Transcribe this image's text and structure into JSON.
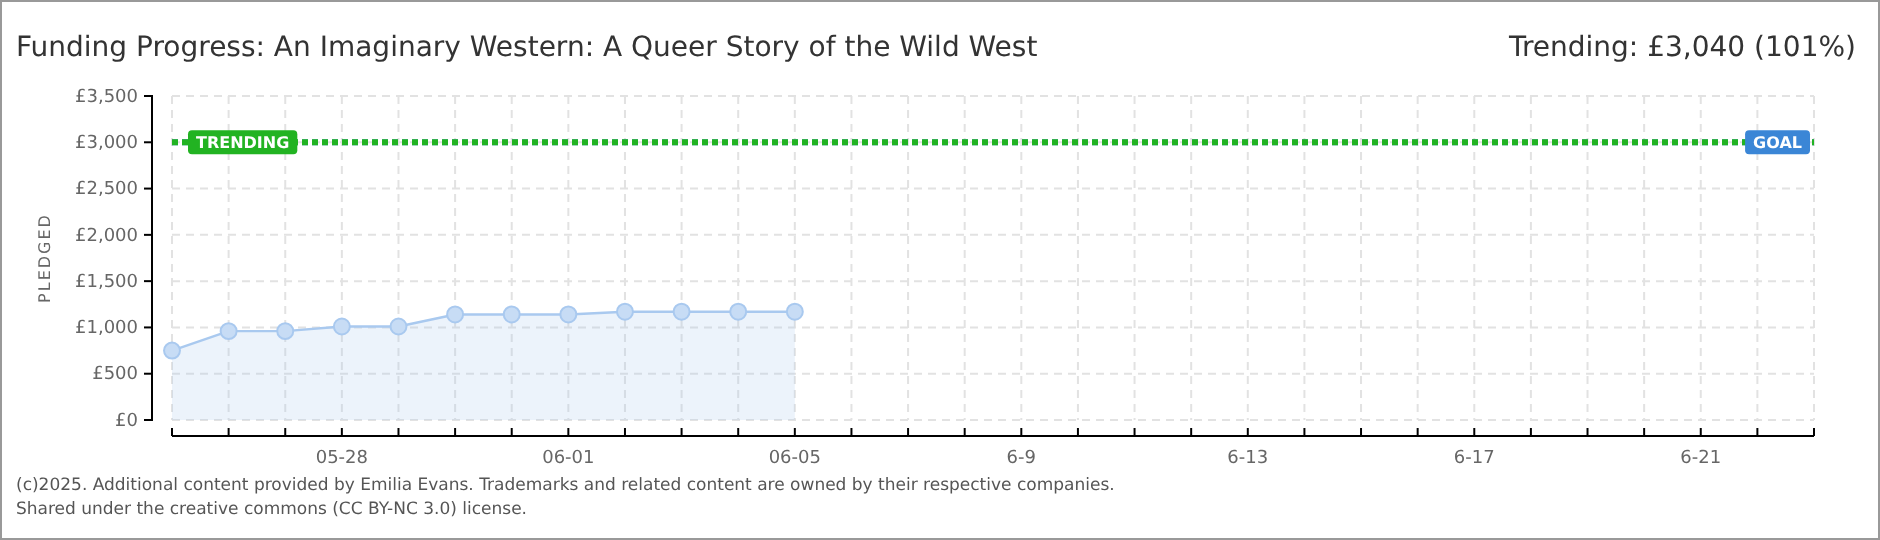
{
  "chart_data": {
    "type": "area",
    "title": "Funding Progress: An Imaginary Western: A Queer Story of the Wild West",
    "subtitle": "Trending: £3,040 (101%)",
    "ylabel": "PLEDGED",
    "x": [
      "--05-25",
      "--05-26",
      "--05-27",
      "--05-28",
      "--05-29",
      "--05-30",
      "--05-31",
      "--06-01",
      "--06-02",
      "--06-03",
      "--06-04",
      "--06-05"
    ],
    "series": [
      {
        "color": "#a9c9ef",
        "values": [
          750,
          960,
          960,
          1010,
          1010,
          1140,
          1140,
          1140,
          1170,
          1170,
          1170,
          1170
        ]
      }
    ],
    "marker": "circle",
    "xlim": [
      "--05-25",
      "--06-23"
    ],
    "xticks": [
      {
        "value": "--05-25",
        "label": null
      },
      {
        "value": "--05-26",
        "label": null
      },
      {
        "value": "--05-27",
        "label": null
      },
      {
        "value": "--05-28",
        "label": "05-28"
      },
      {
        "value": "--05-29",
        "label": null
      },
      {
        "value": "--05-30",
        "label": null
      },
      {
        "value": "--05-31",
        "label": null
      },
      {
        "value": "--06-01",
        "label": "06-01"
      },
      {
        "value": "--06-02",
        "label": null
      },
      {
        "value": "--06-03",
        "label": null
      },
      {
        "value": "--06-04",
        "label": null
      },
      {
        "value": "--06-05",
        "label": "06-05"
      },
      {
        "value": "--06-06",
        "label": null
      },
      {
        "value": "--06-07",
        "label": null
      },
      {
        "value": "--06-08",
        "label": null
      },
      {
        "value": "--06-09",
        "label": "6-9"
      },
      {
        "value": "--06-10",
        "label": null
      },
      {
        "value": "--06-11",
        "label": null
      },
      {
        "value": "--06-12",
        "label": null
      },
      {
        "value": "--06-13",
        "label": "6-13"
      },
      {
        "value": "--06-14",
        "label": null
      },
      {
        "value": "--06-15",
        "label": null
      },
      {
        "value": "--06-16",
        "label": null
      },
      {
        "value": "--06-17",
        "label": "6-17"
      },
      {
        "value": "--06-18",
        "label": null
      },
      {
        "value": "--06-19",
        "label": null
      },
      {
        "value": "--06-20",
        "label": null
      },
      {
        "value": "--06-21",
        "label": "6-21"
      },
      {
        "value": "--06-22",
        "label": null
      },
      {
        "value": "--06-23",
        "label": null
      }
    ],
    "ylim": [
      0,
      3500
    ],
    "yticks": [
      {
        "value": 0,
        "label": "£0"
      },
      {
        "value": 500,
        "label": "£500"
      },
      {
        "value": 1000,
        "label": "£1,000"
      },
      {
        "value": 1500,
        "label": "£1,500"
      },
      {
        "value": 2000,
        "label": "£2,000"
      },
      {
        "value": 2500,
        "label": "£2,500"
      },
      {
        "value": 3000,
        "label": "£3,000"
      },
      {
        "value": 3500,
        "label": "£3,500"
      }
    ],
    "grid": true,
    "ref_lines": [
      {
        "axis": "y",
        "value": 3000,
        "label": "GOAL",
        "color": "#3b86d6",
        "line_style": "dotted"
      },
      {
        "axis": "y",
        "value": 3000,
        "label": "TRENDING",
        "color": "#22b322",
        "line_style": "dotted"
      }
    ],
    "annotations": [
      "(c)2025. Additional content provided by Emilia Evans. Trademarks and related content are owned by their respective companies.",
      "Shared under the creative commons (CC BY-NC 3.0) license."
    ]
  }
}
